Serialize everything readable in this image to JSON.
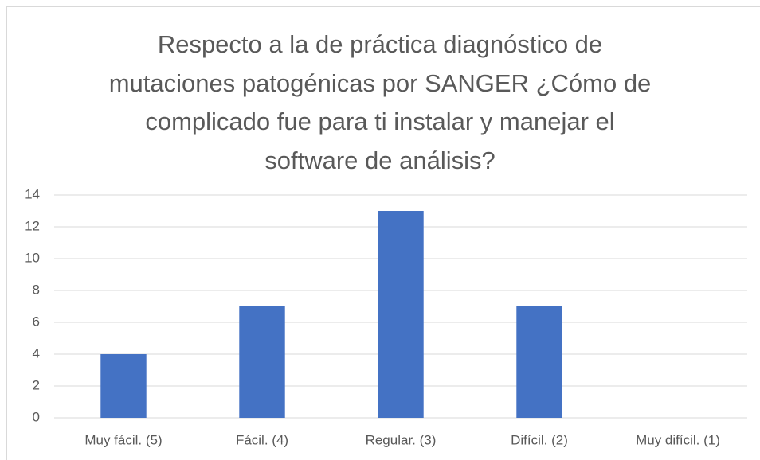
{
  "chart_data": {
    "type": "bar",
    "title": "Respecto a la de práctica diagnóstico de mutaciones patogénicas por SANGER ¿Cómo de complicado fue para ti instalar y manejar el software de análisis?",
    "categories": [
      "Muy fácil. (5)",
      "Fácil. (4)",
      "Regular. (3)",
      "Difícil. (2)",
      "Muy difícil. (1)"
    ],
    "values": [
      4,
      7,
      13,
      7,
      0
    ],
    "color": "#4472c4",
    "ylim": [
      0,
      14
    ],
    "yticks": [
      0,
      2,
      4,
      6,
      8,
      10,
      12,
      14
    ],
    "grid": true
  }
}
